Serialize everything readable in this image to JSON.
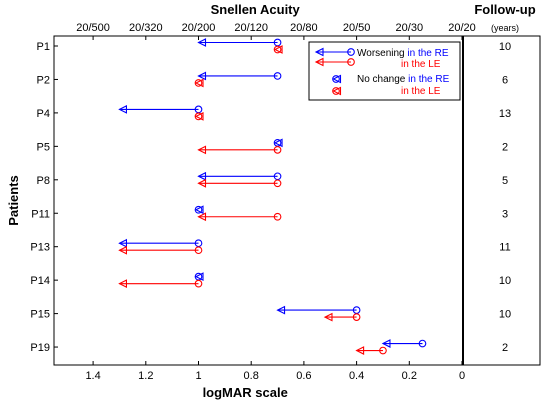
{
  "chart_data": {
    "type": "scatter",
    "xlabel": "logMAR scale",
    "x2label": "Snellen Acuity",
    "ylabel": "Patients",
    "xlim": [
      1.55,
      0
    ],
    "x_ticks": [
      {
        "value": 1.4,
        "label": "1.4"
      },
      {
        "value": 1.2,
        "label": "1.2"
      },
      {
        "value": 1.0,
        "label": "1"
      },
      {
        "value": 0.8,
        "label": "0.8"
      },
      {
        "value": 0.6,
        "label": "0.6"
      },
      {
        "value": 0.4,
        "label": "0.4"
      },
      {
        "value": 0.2,
        "label": "0.2"
      },
      {
        "value": 0.0,
        "label": "0"
      }
    ],
    "x2_ticks": [
      {
        "value": 1.4,
        "label": "20/500"
      },
      {
        "value": 1.2,
        "label": "20/320"
      },
      {
        "value": 1.0,
        "label": "20/200"
      },
      {
        "value": 0.8,
        "label": "20/120"
      },
      {
        "value": 0.6,
        "label": "20/80"
      },
      {
        "value": 0.4,
        "label": "20/50"
      },
      {
        "value": 0.2,
        "label": "20/30"
      },
      {
        "value": 0.0,
        "label": "20/20"
      }
    ],
    "followup_header": "Follow-up",
    "followup_unit": "(years)",
    "colors": {
      "RE": "#0000ff",
      "LE": "#ff0000"
    },
    "patients": [
      {
        "id": "P1",
        "followup": "10",
        "RE": [
          0.7,
          1.0
        ],
        "LE": [
          0.7,
          0.7
        ]
      },
      {
        "id": "P2",
        "followup": "6",
        "RE": [
          0.7,
          1.0
        ],
        "LE": [
          1.0,
          1.0
        ]
      },
      {
        "id": "P4",
        "followup": "13",
        "RE": [
          1.0,
          1.3
        ],
        "LE": [
          1.0,
          1.0
        ]
      },
      {
        "id": "P5",
        "followup": "2",
        "RE": [
          0.7,
          0.7
        ],
        "LE": [
          0.7,
          1.0
        ]
      },
      {
        "id": "P8",
        "followup": "5",
        "RE": [
          0.7,
          1.0
        ],
        "LE": [
          0.7,
          1.0
        ]
      },
      {
        "id": "P11",
        "followup": "3",
        "RE": [
          1.0,
          1.0
        ],
        "LE": [
          0.7,
          1.0
        ]
      },
      {
        "id": "P13",
        "followup": "11",
        "RE": [
          1.0,
          1.3
        ],
        "LE": [
          1.0,
          1.3
        ]
      },
      {
        "id": "P14",
        "followup": "10",
        "RE": [
          1.0,
          1.0
        ],
        "LE": [
          1.0,
          1.3
        ]
      },
      {
        "id": "P15",
        "followup": "10",
        "RE": [
          0.4,
          0.7
        ],
        "LE": [
          0.4,
          0.52
        ]
      },
      {
        "id": "P19",
        "followup": "2",
        "RE": [
          0.15,
          0.3
        ],
        "LE": [
          0.3,
          0.4
        ]
      }
    ],
    "legend": {
      "placement": "top-right",
      "worsening": {
        "text": "Worsening",
        "re": " in the RE",
        "le": "in the LE"
      },
      "nochange": {
        "text": "No change",
        "re": " in the RE",
        "le": "in the LE"
      }
    }
  }
}
